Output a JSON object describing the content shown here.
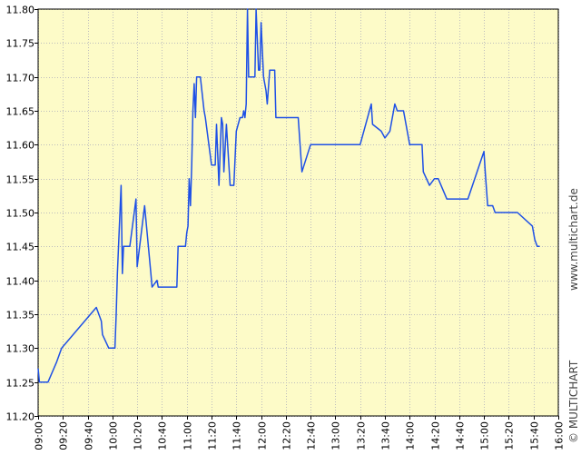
{
  "chart_data": {
    "type": "line",
    "title": "",
    "xlabel": "",
    "ylabel": "",
    "xlim": [
      "09:00",
      "16:00"
    ],
    "ylim": [
      11.2,
      11.8
    ],
    "grid": true,
    "x_ticks": [
      "09:00",
      "09:20",
      "09:40",
      "10:00",
      "10:20",
      "10:40",
      "11:00",
      "11:20",
      "11:40",
      "12:00",
      "12:20",
      "12:40",
      "13:00",
      "13:20",
      "13:40",
      "14:00",
      "14:20",
      "14:40",
      "15:00",
      "15:20",
      "15:40",
      "16:00"
    ],
    "y_ticks": [
      "11.20",
      "11.25",
      "11.30",
      "11.35",
      "11.40",
      "11.45",
      "11.50",
      "11.55",
      "11.60",
      "11.65",
      "11.70",
      "11.75",
      "11.80"
    ],
    "series": [
      {
        "name": "",
        "color": "#1e50e6",
        "x": [
          "09:00",
          "09:01",
          "09:08",
          "09:15",
          "09:19",
          "09:47",
          "09:51",
          "09:52",
          "09:57",
          "09:59",
          "10:00",
          "10:01",
          "10:02",
          "10:03",
          "10:04",
          "10:07",
          "10:08",
          "10:09",
          "10:10",
          "10:11",
          "10:12",
          "10:13",
          "10:14",
          "10:19",
          "10:20",
          "10:26",
          "10:31",
          "10:32",
          "10:36",
          "10:37",
          "10:38",
          "10:39",
          "10:40",
          "10:41",
          "10:42",
          "10:43",
          "10:44",
          "10:45",
          "10:46",
          "10:47",
          "10:48",
          "10:49",
          "10:50",
          "10:51",
          "10:52",
          "10:53",
          "10:56",
          "10:58",
          "10:59",
          "11:00",
          "11:01",
          "11:02",
          "11:03",
          "11:04",
          "11:05",
          "11:06",
          "11:07",
          "11:08",
          "11:09",
          "11:10",
          "11:11",
          "11:14",
          "11:15",
          "11:20",
          "11:23",
          "11:24",
          "11:26",
          "11:28",
          "11:29",
          "11:30",
          "11:32",
          "11:35",
          "11:37",
          "11:38",
          "11:40",
          "11:43",
          "11:45",
          "11:46",
          "11:47",
          "11:48",
          "11:49",
          "11:50",
          "11:55",
          "11:56",
          "11:58",
          "11:59",
          "12:00",
          "12:02",
          "12:04",
          "12:05",
          "12:07",
          "12:08",
          "12:11",
          "12:12",
          "12:13",
          "12:14",
          "12:15",
          "12:17",
          "12:18",
          "12:24",
          "12:25",
          "12:28",
          "12:30",
          "12:33",
          "12:40",
          "12:59",
          "13:00",
          "13:01",
          "13:20",
          "13:29",
          "13:30",
          "13:37",
          "13:40",
          "13:44",
          "13:48",
          "13:50",
          "13:55",
          "14:00",
          "14:05",
          "14:10",
          "14:11",
          "14:16",
          "14:20",
          "14:23",
          "14:30",
          "14:33",
          "14:38",
          "14:40",
          "14:41",
          "14:47",
          "15:00",
          "15:01",
          "15:03",
          "15:04",
          "15:07",
          "15:09",
          "15:10",
          "15:13",
          "15:19",
          "15:27",
          "15:39",
          "15:41",
          "15:43",
          "15:45"
        ],
        "y": [
          11.27,
          11.25,
          11.25,
          11.28,
          11.3,
          11.36,
          11.34,
          11.32,
          11.3,
          11.3,
          11.3,
          11.3,
          11.3,
          11.35,
          11.41,
          11.54,
          11.41,
          11.45,
          11.45,
          11.45,
          11.45,
          11.45,
          11.45,
          11.52,
          11.42,
          11.51,
          11.41,
          11.39,
          11.4,
          11.39,
          11.39,
          11.39,
          11.39,
          11.39,
          11.39,
          11.39,
          11.39,
          11.39,
          11.39,
          11.39,
          11.39,
          11.39,
          11.39,
          11.39,
          11.39,
          11.45,
          11.45,
          11.45,
          11.45,
          11.47,
          11.48,
          11.55,
          11.51,
          11.57,
          11.65,
          11.69,
          11.64,
          11.7,
          11.7,
          11.7,
          11.7,
          11.65,
          11.64,
          11.57,
          11.57,
          11.63,
          11.54,
          11.64,
          11.63,
          11.56,
          11.63,
          11.54,
          11.54,
          11.54,
          11.62,
          11.64,
          11.64,
          11.65,
          11.64,
          11.66,
          11.8,
          11.7,
          11.7,
          11.8,
          11.71,
          11.71,
          11.78,
          11.7,
          11.68,
          11.66,
          11.71,
          11.71,
          11.71,
          11.64,
          11.64,
          11.64,
          11.64,
          11.64,
          11.64,
          11.64,
          11.64,
          11.64,
          11.64,
          11.56,
          11.6,
          11.6,
          11.6,
          11.6,
          11.6,
          11.66,
          11.63,
          11.62,
          11.61,
          11.62,
          11.66,
          11.65,
          11.65,
          11.6,
          11.6,
          11.6,
          11.56,
          11.54,
          11.55,
          11.55,
          11.52,
          11.52,
          11.52,
          11.52,
          11.52,
          11.52,
          11.59,
          11.56,
          11.51,
          11.51,
          11.51,
          11.5,
          11.5,
          11.5,
          11.5,
          11.5,
          11.48,
          11.46,
          11.45,
          11.45
        ]
      }
    ]
  },
  "watermark": {
    "brand": "© MULTICHART",
    "url": "www.multichart.de"
  },
  "colors": {
    "plot_background": "#fdfbc8",
    "grid": "#bdbdbd",
    "axis": "#000000",
    "line": "#1e50e6"
  }
}
